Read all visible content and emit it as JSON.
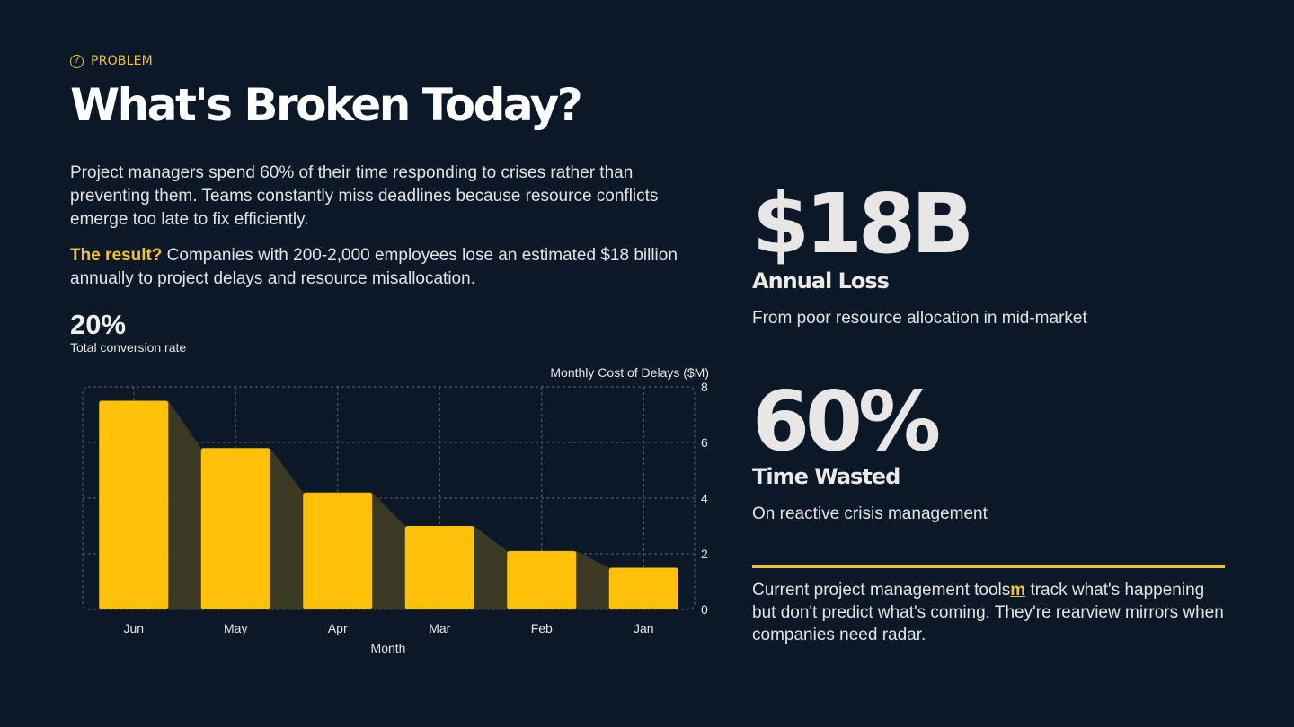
{
  "eyebrow": {
    "icon": "question-circle-icon",
    "label": "PROBLEM"
  },
  "title": "What's Broken Today?",
  "intro": "Project managers spend 60% of their time responding to crises rather than preventing them. Teams constantly miss deadlines because resource conflicts emerge too late to fix efficiently.",
  "result": {
    "lead": "The result?",
    "text": " Companies with 200-2,000 employees lose an estimated $18 billion annually to project delays and resource misallocation."
  },
  "kpi": {
    "value": "20%",
    "label": "Total conversion rate"
  },
  "chart_data": {
    "type": "bar",
    "title": "Monthly Cost of Delays ($M)",
    "xlabel": "Month",
    "ylabel": "",
    "categories": [
      "Jun",
      "May",
      "Apr",
      "Mar",
      "Feb",
      "Jan"
    ],
    "values": [
      7.5,
      5.8,
      4.2,
      3.0,
      2.1,
      1.5
    ],
    "ylim": [
      0,
      8
    ],
    "yticks": [
      "0",
      "2",
      "4",
      "6",
      "8"
    ],
    "grid": true,
    "y_axis_side": "right",
    "bar_color": "#ffc107",
    "area_color": "#3e3a24"
  },
  "stats": [
    {
      "value": "$18B",
      "title": "Annual Loss",
      "subtitle": "From poor resource allocation in mid-market"
    },
    {
      "value": "60%",
      "title": "Time Wasted",
      "subtitle": "On reactive crisis management"
    }
  ],
  "quote": {
    "part1": "Current project management tools",
    "highlight": "m",
    "part2": " track what's happening but don't predict what's coming. They're rearview mirrors when companies need radar."
  },
  "colors": {
    "background": "#0b1828",
    "accent": "#f2c230",
    "text": "#e9e6e4"
  }
}
